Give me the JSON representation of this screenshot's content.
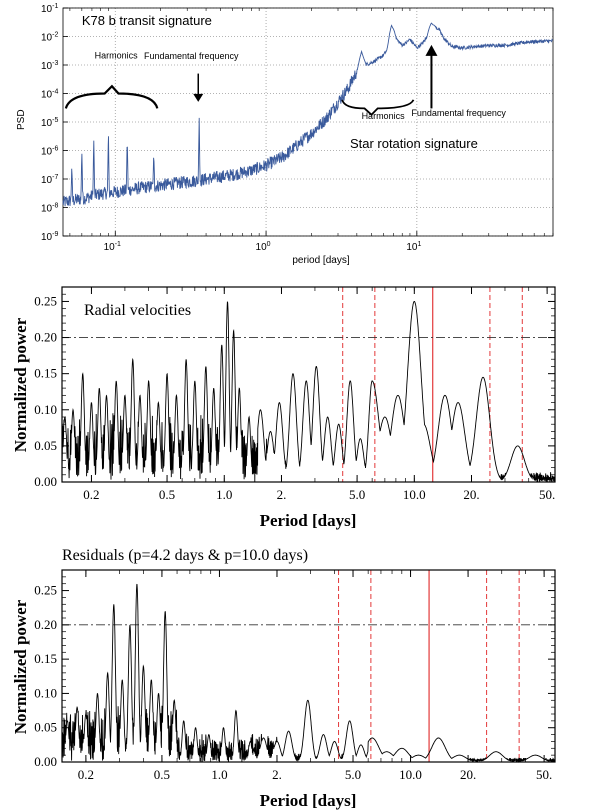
{
  "colors": {
    "psd_line": "#3a5a9c",
    "periodogram_line": "#000000",
    "marker_solid": "#e3383a",
    "marker_dashed": "#e3383a",
    "fap_line": "#333333",
    "grid": "#9a9a9a"
  },
  "chart_data": [
    {
      "type": "line",
      "title": "",
      "xlabel": "period [days]",
      "ylabel": "PSD",
      "xscale": "log",
      "yscale": "log",
      "xlim": [
        0.045,
        80
      ],
      "ylim": [
        1e-09,
        0.1
      ],
      "grid": true,
      "x_ticks": [
        {
          "v": 0.1,
          "label": "10",
          "sup": "-1"
        },
        {
          "v": 1,
          "label": "10",
          "sup": "0"
        },
        {
          "v": 10,
          "label": "10",
          "sup": "1"
        }
      ],
      "y_ticks": [
        {
          "v": 1e-09,
          "label": "10",
          "sup": "-9"
        },
        {
          "v": 1e-08,
          "label": "10",
          "sup": "-8"
        },
        {
          "v": 1e-07,
          "label": "10",
          "sup": "-7"
        },
        {
          "v": 1e-06,
          "label": "10",
          "sup": "-6"
        },
        {
          "v": 1e-05,
          "label": "10",
          "sup": "-5"
        },
        {
          "v": 0.0001,
          "label": "10",
          "sup": "-4"
        },
        {
          "v": 0.001,
          "label": "10",
          "sup": "-3"
        },
        {
          "v": 0.01,
          "label": "10",
          "sup": "-2"
        },
        {
          "v": 0.1,
          "label": "10",
          "sup": "-1"
        }
      ],
      "series": [
        {
          "x": [
            0.045,
            0.05,
            0.06,
            0.07,
            0.08,
            0.1,
            0.12,
            0.15,
            0.2,
            0.25,
            0.3,
            0.36,
            0.45,
            0.6,
            0.8,
            1.0,
            1.3,
            1.6,
            2.0,
            2.5,
            3.0,
            3.5,
            4.0,
            4.3,
            4.5,
            5.0,
            5.5,
            6.0,
            6.5,
            7.0,
            7.5,
            8.0,
            8.5,
            9.0,
            10.0,
            11.0,
            12.0,
            13.0,
            14.0,
            15.0,
            17.0,
            20.0,
            25.0,
            30.0,
            40.0,
            55.0,
            80.0
          ],
          "y": [
            1.5e-08,
            1.7e-08,
            2e-08,
            2.5e-08,
            3e-08,
            3.5e-08,
            4e-08,
            5e-08,
            6e-08,
            7e-08,
            8e-08,
            9e-08,
            1.1e-07,
            1.4e-07,
            2e-07,
            3e-07,
            6e-07,
            1.5e-06,
            4e-06,
            1.3e-05,
            5e-05,
            0.00015,
            0.0006,
            0.0008,
            0.001,
            0.0012,
            0.0016,
            0.0022,
            0.004,
            0.012,
            0.007,
            0.005,
            0.006,
            0.008,
            0.004,
            0.006,
            0.012,
            0.022,
            0.018,
            0.009,
            0.0045,
            0.004,
            0.0045,
            0.0048,
            0.005,
            0.0065,
            0.007
          ],
          "peaks": [
            {
              "x": 0.36,
              "y": 1.5e-05
            },
            {
              "x": 0.18,
              "y": 8e-07
            },
            {
              "x": 0.12,
              "y": 3e-06
            },
            {
              "x": 0.09,
              "y": 6e-06
            },
            {
              "x": 0.072,
              "y": 2.5e-06
            },
            {
              "x": 0.06,
              "y": 1e-06
            },
            {
              "x": 0.0515,
              "y": 3e-07
            },
            {
              "x": 4.3,
              "y": 0.003
            },
            {
              "x": 6.8,
              "y": 0.025
            },
            {
              "x": 12.5,
              "y": 0.03
            }
          ]
        }
      ],
      "annotations": [
        {
          "text": "K78 b transit signature",
          "x": 0.1,
          "y": 0.02
        },
        {
          "text": "Harmonics",
          "x": 0.08,
          "y": 0.0012
        },
        {
          "text": "Fundamental frequency",
          "x": 0.36,
          "y": 0.001
        },
        {
          "text": "Harmonics",
          "x": 6.5,
          "y": 2.5e-05
        },
        {
          "text": "Fundamental frequency",
          "x": 14,
          "y": 2.5e-05
        },
        {
          "text": "Star rotation signature",
          "x": 10,
          "y": 1.5e-06
        }
      ]
    },
    {
      "type": "line",
      "title": "Radial velocities",
      "xlabel": "Period [days]",
      "ylabel": "Normalized power",
      "xscale": "log",
      "xlim": [
        0.14,
        55
      ],
      "ylim": [
        0,
        0.27
      ],
      "fap_level": 0.2,
      "x_tick_labels": [
        "0.2",
        "0.5",
        "1.0",
        "2.",
        "5.0",
        "10.0",
        "20.",
        "50."
      ],
      "x_tick_values": [
        0.2,
        0.5,
        1.0,
        2.0,
        5.0,
        10.0,
        20.0,
        50.0
      ],
      "y_tick_labels": [
        "0.00",
        "0.05",
        "0.10",
        "0.15",
        "0.20",
        "0.25"
      ],
      "y_tick_values": [
        0,
        0.05,
        0.1,
        0.15,
        0.2,
        0.25
      ],
      "markers_solid": [
        12.5
      ],
      "markers_dashed": [
        4.2,
        6.2,
        25.0,
        37.0
      ],
      "peaks": [
        {
          "x": 0.145,
          "y": 0.09
        },
        {
          "x": 0.16,
          "y": 0.1
        },
        {
          "x": 0.18,
          "y": 0.15
        },
        {
          "x": 0.2,
          "y": 0.11
        },
        {
          "x": 0.22,
          "y": 0.13
        },
        {
          "x": 0.24,
          "y": 0.12
        },
        {
          "x": 0.27,
          "y": 0.14
        },
        {
          "x": 0.3,
          "y": 0.12
        },
        {
          "x": 0.33,
          "y": 0.17
        },
        {
          "x": 0.36,
          "y": 0.12
        },
        {
          "x": 0.4,
          "y": 0.14
        },
        {
          "x": 0.45,
          "y": 0.11
        },
        {
          "x": 0.5,
          "y": 0.15
        },
        {
          "x": 0.56,
          "y": 0.12
        },
        {
          "x": 0.63,
          "y": 0.17
        },
        {
          "x": 0.7,
          "y": 0.14
        },
        {
          "x": 0.8,
          "y": 0.16
        },
        {
          "x": 0.88,
          "y": 0.13
        },
        {
          "x": 0.97,
          "y": 0.19
        },
        {
          "x": 1.04,
          "y": 0.25
        },
        {
          "x": 1.12,
          "y": 0.21
        },
        {
          "x": 1.2,
          "y": 0.13
        },
        {
          "x": 1.35,
          "y": 0.09
        },
        {
          "x": 1.55,
          "y": 0.1
        },
        {
          "x": 1.75,
          "y": 0.07
        },
        {
          "x": 1.95,
          "y": 0.11
        },
        {
          "x": 2.3,
          "y": 0.15
        },
        {
          "x": 2.7,
          "y": 0.14
        },
        {
          "x": 3.05,
          "y": 0.16
        },
        {
          "x": 3.5,
          "y": 0.09
        },
        {
          "x": 4.0,
          "y": 0.08
        },
        {
          "x": 4.6,
          "y": 0.14
        },
        {
          "x": 5.2,
          "y": 0.06
        },
        {
          "x": 6.0,
          "y": 0.14
        },
        {
          "x": 7.0,
          "y": 0.09
        },
        {
          "x": 8.2,
          "y": 0.12
        },
        {
          "x": 10.0,
          "y": 0.25
        },
        {
          "x": 11.2,
          "y": 0.08
        },
        {
          "x": 14.5,
          "y": 0.12
        },
        {
          "x": 17.0,
          "y": 0.11
        },
        {
          "x": 23.0,
          "y": 0.145
        },
        {
          "x": 35.0,
          "y": 0.05
        }
      ]
    },
    {
      "type": "line",
      "title": "Residuals (p=4.2 days & p=10.0 days)",
      "xlabel": "Period [days]",
      "ylabel": "Normalized power",
      "xscale": "log",
      "xlim": [
        0.15,
        57
      ],
      "ylim": [
        0,
        0.28
      ],
      "fap_level": 0.2,
      "x_tick_labels": [
        "0.2",
        "0.5",
        "1.0",
        "2.",
        "5.0",
        "10.0",
        "20.",
        "50."
      ],
      "x_tick_values": [
        0.2,
        0.5,
        1.0,
        2.0,
        5.0,
        10.0,
        20.0,
        50.0
      ],
      "y_tick_labels": [
        "0.00",
        "0.05",
        "0.10",
        "0.15",
        "0.20",
        "0.25"
      ],
      "y_tick_values": [
        0,
        0.05,
        0.1,
        0.15,
        0.2,
        0.25
      ],
      "markers_solid": [
        12.5
      ],
      "markers_dashed": [
        4.2,
        6.2,
        25.0,
        37.0
      ],
      "peaks": [
        {
          "x": 0.16,
          "y": 0.06
        },
        {
          "x": 0.18,
          "y": 0.08
        },
        {
          "x": 0.2,
          "y": 0.07
        },
        {
          "x": 0.23,
          "y": 0.1
        },
        {
          "x": 0.26,
          "y": 0.13
        },
        {
          "x": 0.28,
          "y": 0.23
        },
        {
          "x": 0.31,
          "y": 0.12
        },
        {
          "x": 0.34,
          "y": 0.2
        },
        {
          "x": 0.37,
          "y": 0.26
        },
        {
          "x": 0.4,
          "y": 0.14
        },
        {
          "x": 0.44,
          "y": 0.12
        },
        {
          "x": 0.48,
          "y": 0.1
        },
        {
          "x": 0.52,
          "y": 0.22
        },
        {
          "x": 0.58,
          "y": 0.09
        },
        {
          "x": 0.65,
          "y": 0.06
        },
        {
          "x": 0.75,
          "y": 0.05
        },
        {
          "x": 0.88,
          "y": 0.04
        },
        {
          "x": 1.05,
          "y": 0.05
        },
        {
          "x": 1.22,
          "y": 0.075
        },
        {
          "x": 1.45,
          "y": 0.03
        },
        {
          "x": 1.7,
          "y": 0.035
        },
        {
          "x": 2.0,
          "y": 0.03
        },
        {
          "x": 2.3,
          "y": 0.045
        },
        {
          "x": 2.9,
          "y": 0.09
        },
        {
          "x": 3.5,
          "y": 0.04
        },
        {
          "x": 4.0,
          "y": 0.03
        },
        {
          "x": 4.8,
          "y": 0.06
        },
        {
          "x": 5.5,
          "y": 0.025
        },
        {
          "x": 6.3,
          "y": 0.035
        },
        {
          "x": 7.5,
          "y": 0.015
        },
        {
          "x": 9.0,
          "y": 0.02
        },
        {
          "x": 11.0,
          "y": 0.01
        },
        {
          "x": 14.0,
          "y": 0.035
        },
        {
          "x": 18.0,
          "y": 0.01
        },
        {
          "x": 28.0,
          "y": 0.015
        },
        {
          "x": 45.0,
          "y": 0.01
        }
      ]
    }
  ]
}
